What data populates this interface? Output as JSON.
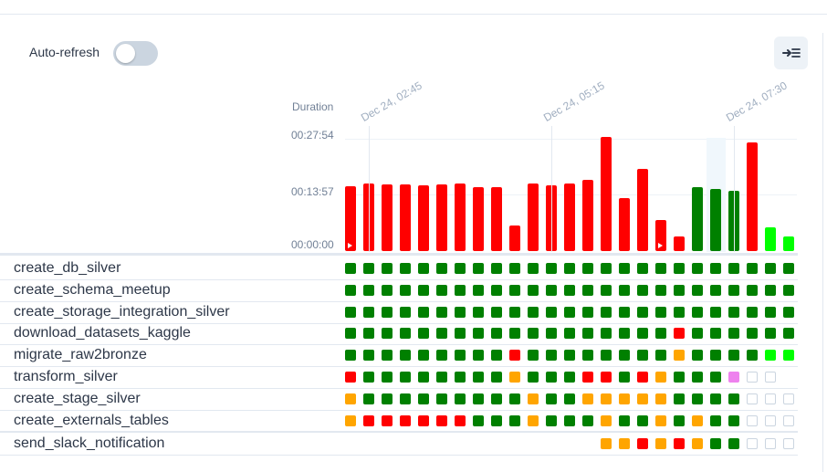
{
  "header": {
    "auto_refresh_label": "Auto-refresh",
    "auto_refresh_on": false
  },
  "colors": {
    "success": "#008000",
    "failed": "#ff0000",
    "upstream_failed": "#ffa500",
    "running": "#00ff00",
    "up_for_retry": "#ee82ee",
    "empty": "#ffffff"
  },
  "chart_data": {
    "type": "bar",
    "ylabel": "Duration",
    "y_ticks": [
      "00:27:54",
      "00:13:57",
      "00:00:00"
    ],
    "y_tick_seconds": [
      1674,
      837,
      0
    ],
    "x_date_labels": [
      {
        "label": "Dec 24, 02:45",
        "run_index": 1
      },
      {
        "label": "Dec 24, 05:15",
        "run_index": 11
      },
      {
        "label": "Dec 24, 07:30",
        "run_index": 21
      }
    ],
    "runs": [
      {
        "duration_s": 950,
        "state": "failed",
        "manual": true
      },
      {
        "duration_s": 992,
        "state": "failed"
      },
      {
        "duration_s": 978,
        "state": "failed"
      },
      {
        "duration_s": 978,
        "state": "failed"
      },
      {
        "duration_s": 965,
        "state": "failed"
      },
      {
        "duration_s": 978,
        "state": "failed"
      },
      {
        "duration_s": 992,
        "state": "failed"
      },
      {
        "duration_s": 938,
        "state": "failed"
      },
      {
        "duration_s": 938,
        "state": "failed"
      },
      {
        "duration_s": 378,
        "state": "failed"
      },
      {
        "duration_s": 992,
        "state": "failed"
      },
      {
        "duration_s": 965,
        "state": "failed"
      },
      {
        "duration_s": 992,
        "state": "failed"
      },
      {
        "duration_s": 1046,
        "state": "failed"
      },
      {
        "duration_s": 1674,
        "state": "failed"
      },
      {
        "duration_s": 783,
        "state": "failed"
      },
      {
        "duration_s": 1209,
        "state": "failed"
      },
      {
        "duration_s": 459,
        "state": "failed",
        "manual": true
      },
      {
        "duration_s": 216,
        "state": "failed"
      },
      {
        "duration_s": 938,
        "state": "success"
      },
      {
        "duration_s": 911,
        "state": "success"
      },
      {
        "duration_s": 884,
        "state": "success"
      },
      {
        "duration_s": 1595,
        "state": "failed"
      },
      {
        "duration_s": 351,
        "state": "running"
      },
      {
        "duration_s": 216,
        "state": "running"
      }
    ]
  },
  "tasks": [
    {
      "name": "create_db_silver",
      "states": "sssssssssssssssssssssssss"
    },
    {
      "name": "create_schema_meetup",
      "states": "sssssssssssssssssssssssss"
    },
    {
      "name": "create_storage_integration_silver",
      "states": "sssssssssssssssssssssssss"
    },
    {
      "name": "download_datasets_kaggle",
      "states": "ssssssssssssssssssfssssss"
    },
    {
      "name": "migrate_raw2bronze",
      "states": "sssssssssfssssssssussssrr"
    },
    {
      "name": "transform_silver",
      "states": "fssssssssusssffsfussspee"
    },
    {
      "name": "create_stage_silver",
      "states": "usssssssssussuuuuusssseee"
    },
    {
      "name": "create_externals_tables",
      "states": "uffffffsssusssussususseee"
    },
    {
      "name": "send_slack_notification",
      "states": "--------------uufufusseee"
    }
  ]
}
